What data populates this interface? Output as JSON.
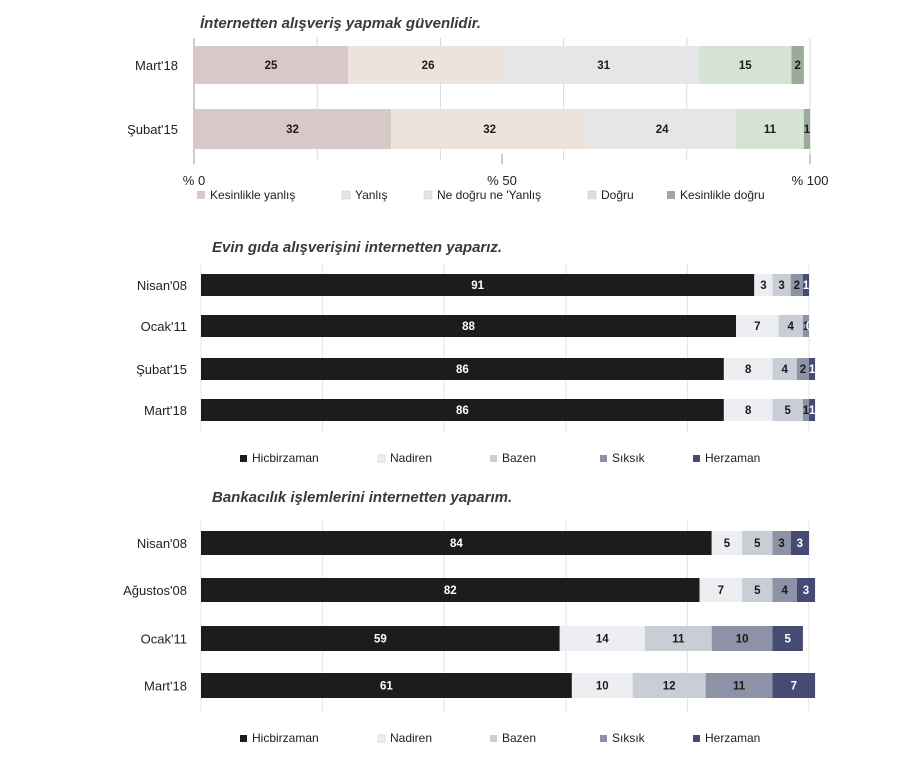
{
  "chart_data": [
    {
      "type": "bar",
      "orientation": "horizontal",
      "stacked": true,
      "title": "İnternetten alışveriş yapmak güvenlidir.",
      "categories": [
        "Mart'18",
        "Şubat'15"
      ],
      "series": [
        {
          "name": "Kesinlikle yanlış",
          "values": [
            25,
            32
          ],
          "color": "#d8c9c8"
        },
        {
          "name": "Yanlış",
          "values": [
            26,
            32
          ],
          "color": "#ece3dd"
        },
        {
          "name": "Ne doğru ne 'Yanlış",
          "values": [
            31,
            24
          ],
          "color": "#e6e6e6"
        },
        {
          "name": "Doğru",
          "values": [
            15,
            11
          ],
          "color": "#d5e3d4"
        },
        {
          "name": "Kesinlikle doğru",
          "values": [
            2,
            1
          ],
          "color": "#9aab9a"
        }
      ],
      "xlim": [
        0,
        100
      ],
      "xticks": [
        "% 0",
        "% 50",
        "% 100"
      ],
      "grid": true,
      "legend_position": "bottom"
    },
    {
      "type": "bar",
      "orientation": "horizontal",
      "stacked": true,
      "title": "Evin gıda alışverişini internetten yaparız.",
      "categories": [
        "Nisan'08",
        "Ocak'11",
        "Şubat'15",
        "Mart'18"
      ],
      "series": [
        {
          "name": "Hicbirzaman",
          "values": [
            91,
            88,
            86,
            86
          ],
          "color": "#1c1c1c"
        },
        {
          "name": "Nadiren",
          "values": [
            3,
            7,
            8,
            8
          ],
          "color": "#eceef2"
        },
        {
          "name": "Bazen",
          "values": [
            3,
            4,
            4,
            5
          ],
          "color": "#c9cdd6"
        },
        {
          "name": "Sıksık",
          "values": [
            2,
            1,
            2,
            1
          ],
          "color": "#8d92a6"
        },
        {
          "name": "Herzaman",
          "values": [
            1,
            0,
            1,
            1
          ],
          "color": "#454b72"
        }
      ],
      "grid": true,
      "legend_position": "bottom"
    },
    {
      "type": "bar",
      "orientation": "horizontal",
      "stacked": true,
      "title": "Bankacılık işlemlerini internetten yaparım.",
      "categories": [
        "Nisan'08",
        "Ağustos'08",
        "Ocak'11",
        "Mart'18"
      ],
      "series": [
        {
          "name": "Hicbirzaman",
          "values": [
            84,
            82,
            59,
            61
          ],
          "color": "#1c1c1c"
        },
        {
          "name": "Nadiren",
          "values": [
            5,
            7,
            14,
            10
          ],
          "color": "#eceef2"
        },
        {
          "name": "Bazen",
          "values": [
            5,
            5,
            11,
            12
          ],
          "color": "#c9cdd6"
        },
        {
          "name": "Sıksık",
          "values": [
            3,
            4,
            10,
            11
          ],
          "color": "#8d92a6"
        },
        {
          "name": "Herzaman",
          "values": [
            3,
            3,
            5,
            7
          ],
          "color": "#454b72"
        }
      ],
      "grid": true,
      "legend_position": "bottom"
    }
  ]
}
